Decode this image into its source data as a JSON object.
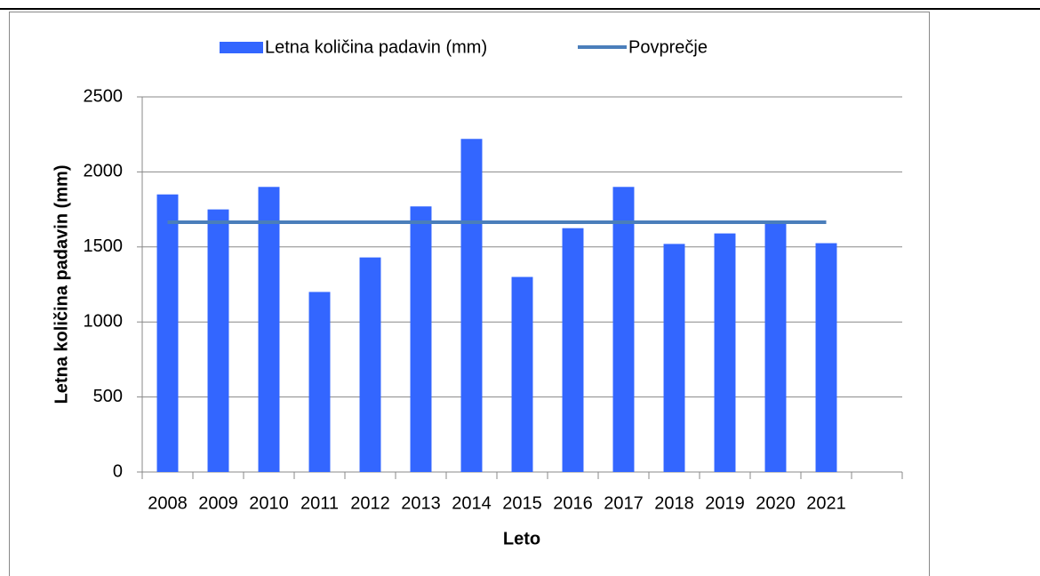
{
  "chart_data": {
    "type": "bar",
    "x_label": "Leto",
    "y_label": "Letna količina padavin (mm)",
    "categories": [
      "2008",
      "2009",
      "2010",
      "2011",
      "2012",
      "2013",
      "2014",
      "2015",
      "2016",
      "2017",
      "2018",
      "2019",
      "2020",
      "2021",
      null
    ],
    "series": [
      {
        "name": "Letna količina padavin (mm)",
        "type": "bar",
        "color": "#3366ff",
        "values": [
          1850,
          1750,
          1900,
          1200,
          1430,
          1770,
          2220,
          1300,
          1625,
          1900,
          1520,
          1590,
          1660,
          1525,
          null
        ]
      },
      {
        "name": "Povprečje",
        "type": "line",
        "color": "#4a7ebb",
        "values": [
          1665,
          1665,
          1665,
          1665,
          1665,
          1665,
          1665,
          1665,
          1665,
          1665,
          1665,
          1665,
          1665,
          1665,
          null
        ]
      }
    ],
    "ylim": [
      0,
      2500
    ],
    "yticks": [
      0,
      500,
      1000,
      1500,
      2000,
      2500
    ],
    "grid": true,
    "legend": "top"
  }
}
